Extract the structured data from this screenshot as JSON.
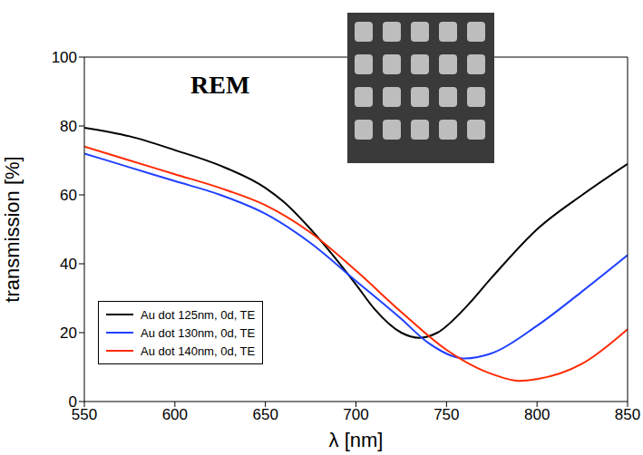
{
  "chart_data": {
    "type": "line",
    "title": "REM",
    "x_label": "λ [nm]",
    "y_label": "transmission [%]",
    "xlim": [
      550,
      850
    ],
    "ylim": [
      0,
      100
    ],
    "xticks": [
      550,
      600,
      650,
      700,
      750,
      800,
      850
    ],
    "yticks": [
      0,
      20,
      40,
      60,
      80,
      100
    ],
    "grid": false,
    "legend": "lower left",
    "series": [
      {
        "name": "Au dot 125nm, 0d, TE",
        "color": "#000000",
        "x": [
          550,
          575,
          600,
          625,
          650,
          660,
          675,
          700,
          710,
          725,
          735,
          745,
          760,
          775,
          800,
          825,
          850
        ],
        "values": [
          79.5,
          77,
          73,
          68.5,
          62,
          58,
          50,
          34,
          27,
          20,
          18.5,
          20,
          27,
          36,
          50,
          60,
          69
        ]
      },
      {
        "name": "Au dot 130nm, 0d, TE",
        "color": "#2040ff",
        "x": [
          550,
          575,
          600,
          625,
          650,
          675,
          700,
          725,
          740,
          760,
          775,
          800,
          825,
          850
        ],
        "values": [
          72,
          68,
          64,
          60,
          54.5,
          46,
          35,
          24,
          17,
          12.5,
          14,
          22,
          32,
          42.5
        ]
      },
      {
        "name": "Au dot 140nm, 0d, TE",
        "color": "#ff2a00",
        "x": [
          550,
          575,
          600,
          625,
          650,
          675,
          700,
          725,
          750,
          775,
          790,
          800,
          825,
          850
        ],
        "values": [
          74,
          70,
          66,
          62,
          57,
          49,
          38,
          26,
          15,
          8,
          6,
          6.5,
          11,
          21
        ]
      }
    ]
  }
}
